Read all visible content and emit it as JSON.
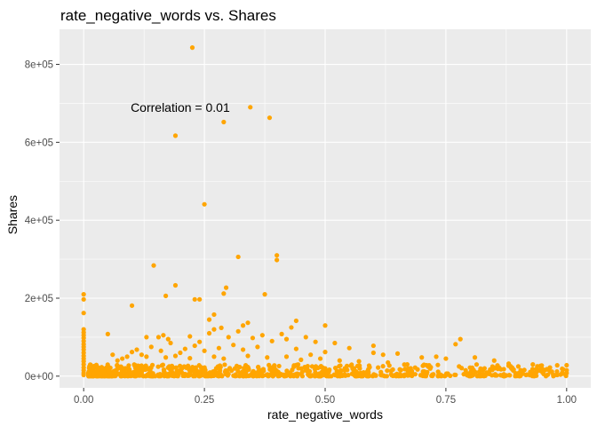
{
  "chart_data": {
    "type": "scatter",
    "title": "rate_negative_words vs. Shares",
    "xlabel": "rate_negative_words",
    "ylabel": "Shares",
    "xlim": [
      -0.05,
      1.05
    ],
    "ylim": [
      -30000,
      890000
    ],
    "x_ticks": [
      0,
      0.25,
      0.5,
      0.75,
      1
    ],
    "x_tick_labels": [
      "0.00",
      "0.25",
      "0.50",
      "0.75",
      "1.00"
    ],
    "y_ticks": [
      0,
      200000,
      400000,
      600000,
      800000
    ],
    "y_tick_labels": [
      "0e+00",
      "2e+05",
      "4e+05",
      "6e+05",
      "8e+05"
    ],
    "annotation": {
      "text": "Correlation = 0.01",
      "x": 0.2,
      "y": 690000
    },
    "grid": true,
    "point_color": "#FFA500",
    "panel_color": "#EBEBEB",
    "points": [
      [
        0.225,
        843000
      ],
      [
        0.345,
        690000
      ],
      [
        0.385,
        663000
      ],
      [
        0.29,
        652000
      ],
      [
        0.19,
        617000
      ],
      [
        0.25,
        441000
      ],
      [
        0.4,
        310000
      ],
      [
        0.4,
        298000
      ],
      [
        0.32,
        306000
      ],
      [
        0.145,
        284000
      ],
      [
        0.295,
        227000
      ],
      [
        0.19,
        233000
      ],
      [
        0.0,
        210000
      ],
      [
        0.0,
        197000
      ],
      [
        0.23,
        197000
      ],
      [
        0.24,
        197000
      ],
      [
        0.17,
        206000
      ],
      [
        0.375,
        210000
      ],
      [
        0.29,
        212000
      ],
      [
        0.1,
        181000
      ],
      [
        0.0,
        162000
      ],
      [
        0.27,
        158000
      ],
      [
        0.26,
        145000
      ],
      [
        0.44,
        142000
      ],
      [
        0.34,
        137000
      ],
      [
        0.33,
        130000
      ],
      [
        0.5,
        130000
      ],
      [
        0.43,
        125000
      ],
      [
        0.285,
        124000
      ],
      [
        0.27,
        120000
      ],
      [
        0.0,
        120000
      ],
      [
        0.0,
        112000
      ],
      [
        0.0,
        105000
      ],
      [
        0.0,
        98000
      ],
      [
        0.0,
        90000
      ],
      [
        0.0,
        82000
      ],
      [
        0.0,
        75000
      ],
      [
        0.0,
        68000
      ],
      [
        0.0,
        60000
      ],
      [
        0.0,
        52000
      ],
      [
        0.0,
        45000
      ],
      [
        0.0,
        38000
      ],
      [
        0.0,
        30000
      ],
      [
        0.0,
        22000
      ],
      [
        0.0,
        15000
      ],
      [
        0.0,
        8000
      ],
      [
        0.0,
        3000
      ],
      [
        0.05,
        108000
      ],
      [
        0.13,
        100000
      ],
      [
        0.155,
        100000
      ],
      [
        0.165,
        105000
      ],
      [
        0.175,
        95000
      ],
      [
        0.22,
        102000
      ],
      [
        0.24,
        88000
      ],
      [
        0.26,
        110000
      ],
      [
        0.3,
        100000
      ],
      [
        0.32,
        115000
      ],
      [
        0.35,
        98000
      ],
      [
        0.37,
        105000
      ],
      [
        0.39,
        90000
      ],
      [
        0.41,
        108000
      ],
      [
        0.42,
        95000
      ],
      [
        0.46,
        100000
      ],
      [
        0.48,
        88000
      ],
      [
        0.52,
        85000
      ],
      [
        0.55,
        72000
      ],
      [
        0.6,
        78000
      ],
      [
        0.6,
        60000
      ],
      [
        0.62,
        55000
      ],
      [
        0.65,
        58000
      ],
      [
        0.7,
        48000
      ],
      [
        0.73,
        50000
      ],
      [
        0.75,
        45000
      ],
      [
        0.78,
        95000
      ],
      [
        0.77,
        82000
      ],
      [
        0.81,
        48000
      ],
      [
        0.85,
        40000
      ],
      [
        0.88,
        32000
      ],
      [
        0.9,
        25000
      ],
      [
        0.93,
        30000
      ],
      [
        0.95,
        18000
      ],
      [
        1.0,
        28000
      ],
      [
        1.0,
        15000
      ],
      [
        1.0,
        8000
      ],
      [
        0.98,
        12000
      ],
      [
        0.5,
        62000
      ],
      [
        0.47,
        55000
      ],
      [
        0.44,
        70000
      ],
      [
        0.36,
        75000
      ],
      [
        0.33,
        68000
      ],
      [
        0.31,
        80000
      ],
      [
        0.28,
        72000
      ],
      [
        0.25,
        65000
      ],
      [
        0.23,
        78000
      ],
      [
        0.21,
        70000
      ],
      [
        0.2,
        60000
      ],
      [
        0.18,
        85000
      ],
      [
        0.16,
        65000
      ],
      [
        0.14,
        75000
      ],
      [
        0.12,
        55000
      ],
      [
        0.11,
        68000
      ],
      [
        0.09,
        50000
      ],
      [
        0.08,
        45000
      ],
      [
        0.07,
        40000
      ],
      [
        0.06,
        55000
      ],
      [
        0.1,
        62000
      ],
      [
        0.13,
        50000
      ],
      [
        0.17,
        48000
      ],
      [
        0.19,
        52000
      ],
      [
        0.22,
        46000
      ],
      [
        0.27,
        50000
      ],
      [
        0.29,
        45000
      ],
      [
        0.34,
        52000
      ],
      [
        0.38,
        48000
      ],
      [
        0.42,
        50000
      ],
      [
        0.45,
        42000
      ],
      [
        0.49,
        45000
      ],
      [
        0.53,
        40000
      ],
      [
        0.57,
        38000
      ],
      [
        0.63,
        35000
      ],
      [
        0.67,
        30000
      ],
      [
        0.71,
        28000
      ],
      [
        0.8,
        22000
      ],
      [
        0.83,
        20000
      ],
      [
        0.87,
        18000
      ]
    ],
    "dense_band": {
      "x_range": [
        0.01,
        1.0
      ],
      "y_max": 30000,
      "n_points": 900,
      "count_decay": 3.2
    }
  }
}
